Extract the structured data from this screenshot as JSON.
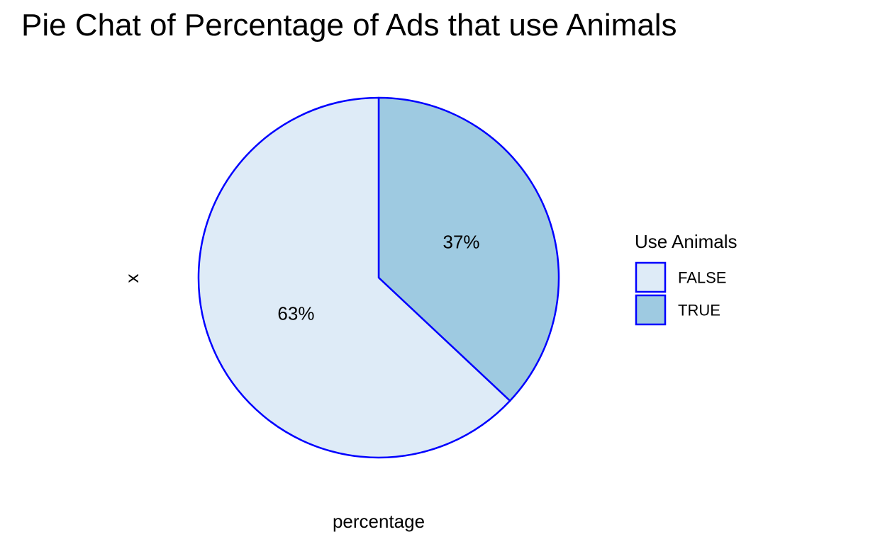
{
  "chart_data": {
    "type": "pie",
    "title": "Pie Chat of Percentage of Ads that use Animals",
    "xlabel": "percentage",
    "ylabel": "x",
    "categories": [
      "FALSE",
      "TRUE"
    ],
    "values": [
      63,
      37
    ],
    "labels": [
      "63%",
      "37%"
    ],
    "legend": {
      "title": "Use Animals",
      "entries": [
        "FALSE",
        "TRUE"
      ],
      "placement": "right"
    },
    "colors": {
      "FALSE": "#deebf7",
      "TRUE": "#9ecae1",
      "outline": "#0000ff"
    },
    "start_angle_deg": 0,
    "direction": "clockwise-from-top-for-TRUE"
  }
}
